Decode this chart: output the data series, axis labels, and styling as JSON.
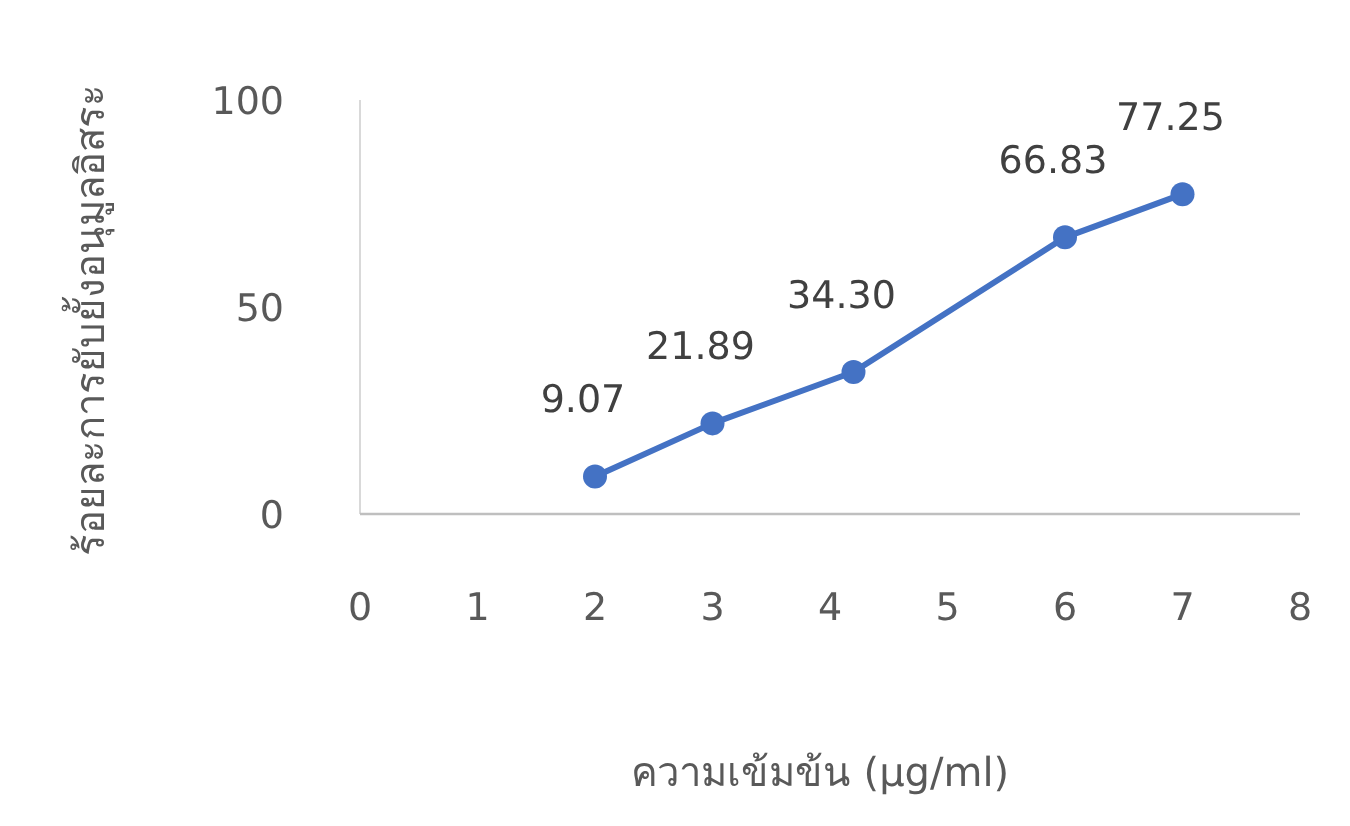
{
  "chart_data": {
    "type": "line",
    "xlabel": "ความเข้มข้น (μg/ml)",
    "ylabel": "ร้อยละการยับยั้งอนุมูลอิสระ",
    "x": [
      2,
      3,
      4.2,
      6,
      7
    ],
    "series": [
      {
        "color": "#4472c4",
        "values": [
          9.07,
          21.89,
          34.3,
          66.83,
          77.25
        ]
      }
    ],
    "value_labels": [
      "9.07",
      "21.89",
      "34.30",
      "66.83",
      "77.25"
    ],
    "xlim": [
      0,
      8
    ],
    "xticks": [
      0,
      1,
      2,
      3,
      4,
      5,
      6,
      7,
      8
    ],
    "ylim": [
      0,
      100
    ],
    "yticks": [
      0,
      50,
      100
    ],
    "marker": "circle",
    "line_style": "solid"
  }
}
